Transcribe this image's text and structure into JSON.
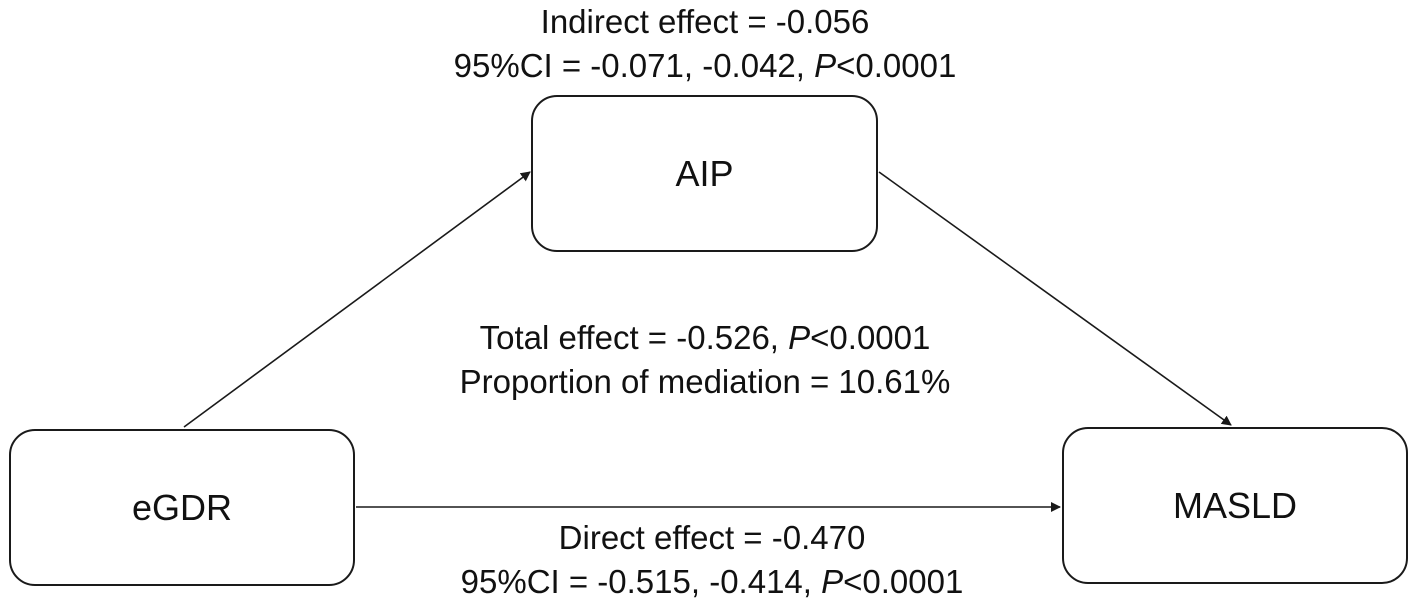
{
  "nodes": {
    "mediator": "AIP",
    "exposure": "eGDR",
    "outcome": "MASLD"
  },
  "indirect": {
    "line1": "Indirect effect = -0.056",
    "ci_prefix": "95%CI = -0.071, -0.042, ",
    "p_symbol": "P",
    "p_value": "<0.0001"
  },
  "total": {
    "line1_prefix": "Total effect = -0.526, ",
    "p_symbol": "P",
    "p_value": "<0.0001",
    "line2": "Proportion of mediation = 10.61%"
  },
  "direct": {
    "line1": "Direct effect = -0.470",
    "ci_prefix": "95%CI = -0.515, -0.414, ",
    "p_symbol": "P",
    "p_value": "<0.0001"
  },
  "colors": {
    "stroke": "#1a1a1a",
    "background": "#ffffff"
  }
}
